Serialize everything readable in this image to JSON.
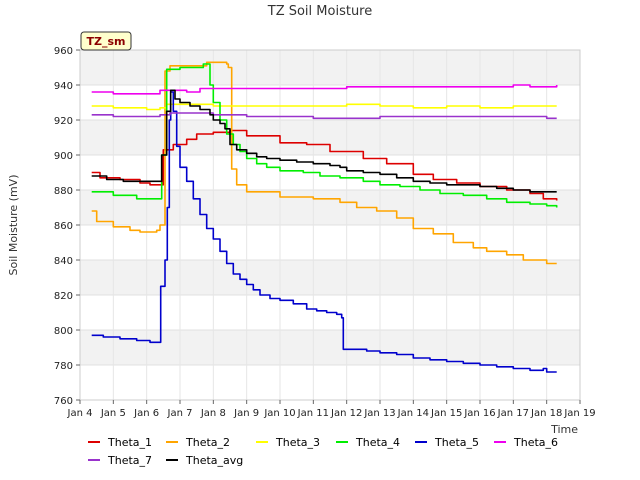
{
  "chart_data": {
    "type": "line",
    "title": "TZ Soil Moisture",
    "xlabel": "Time",
    "ylabel": "Soil Moisture (mV)",
    "tag_label": "TZ_sm",
    "xlim": [
      4,
      19
    ],
    "ylim": [
      760,
      960
    ],
    "yticks": [
      760,
      780,
      800,
      820,
      840,
      860,
      880,
      900,
      920,
      940,
      960
    ],
    "xticks": [
      {
        "value": 4,
        "label": "Jan 4"
      },
      {
        "value": 5,
        "label": "Jan 5"
      },
      {
        "value": 6,
        "label": "Jan 6"
      },
      {
        "value": 7,
        "label": "Jan 7"
      },
      {
        "value": 8,
        "label": "Jan 8"
      },
      {
        "value": 9,
        "label": "Jan 9"
      },
      {
        "value": 10,
        "label": "Jan 10"
      },
      {
        "value": 11,
        "label": "Jan 11"
      },
      {
        "value": 12,
        "label": "Jan 12"
      },
      {
        "value": 13,
        "label": "Jan 13"
      },
      {
        "value": 14,
        "label": "Jan 14"
      },
      {
        "value": 15,
        "label": "Jan 15"
      },
      {
        "value": 16,
        "label": "Jan 16"
      },
      {
        "value": 17,
        "label": "Jan 17"
      },
      {
        "value": 18,
        "label": "Jan 18"
      },
      {
        "value": 19,
        "label": "Jan 19"
      }
    ],
    "grid": true,
    "series": [
      {
        "name": "Theta_1",
        "color": "#dd0000",
        "points": [
          [
            4.35,
            890
          ],
          [
            4.6,
            887
          ],
          [
            5.2,
            886
          ],
          [
            5.8,
            884
          ],
          [
            6.1,
            883
          ],
          [
            6.3,
            883
          ],
          [
            6.5,
            903
          ],
          [
            6.8,
            906
          ],
          [
            7.2,
            909
          ],
          [
            7.5,
            912
          ],
          [
            8.0,
            913
          ],
          [
            8.5,
            914
          ],
          [
            9.0,
            911
          ],
          [
            10.0,
            907
          ],
          [
            10.8,
            906
          ],
          [
            11.5,
            902
          ],
          [
            12.5,
            898
          ],
          [
            13.2,
            895
          ],
          [
            14.0,
            889
          ],
          [
            14.6,
            886
          ],
          [
            15.3,
            884
          ],
          [
            16.0,
            882
          ],
          [
            16.8,
            880
          ],
          [
            17.5,
            878
          ],
          [
            17.9,
            875
          ],
          [
            18.3,
            874
          ]
        ]
      },
      {
        "name": "Theta_2",
        "color": "#ffa500",
        "points": [
          [
            4.35,
            868
          ],
          [
            4.5,
            862
          ],
          [
            5.0,
            859
          ],
          [
            5.5,
            857
          ],
          [
            5.8,
            856
          ],
          [
            6.3,
            857
          ],
          [
            6.4,
            860
          ],
          [
            6.55,
            948
          ],
          [
            6.7,
            951
          ],
          [
            7.5,
            951
          ],
          [
            7.8,
            953
          ],
          [
            8.4,
            952
          ],
          [
            8.45,
            950
          ],
          [
            8.55,
            892
          ],
          [
            8.7,
            883
          ],
          [
            9.0,
            879
          ],
          [
            10.0,
            876
          ],
          [
            11.0,
            875
          ],
          [
            11.8,
            873
          ],
          [
            12.3,
            870
          ],
          [
            12.9,
            868
          ],
          [
            13.5,
            864
          ],
          [
            14.0,
            858
          ],
          [
            14.6,
            855
          ],
          [
            15.2,
            850
          ],
          [
            15.8,
            847
          ],
          [
            16.2,
            845
          ],
          [
            16.8,
            843
          ],
          [
            17.3,
            840
          ],
          [
            18.0,
            838
          ],
          [
            18.3,
            838
          ]
        ]
      },
      {
        "name": "Theta_3",
        "color": "#ffff00",
        "points": [
          [
            4.35,
            928
          ],
          [
            5.0,
            927
          ],
          [
            6.0,
            926
          ],
          [
            6.4,
            927
          ],
          [
            6.6,
            929
          ],
          [
            7.0,
            929
          ],
          [
            8.0,
            928
          ],
          [
            9.0,
            928
          ],
          [
            10.0,
            928
          ],
          [
            11.0,
            928
          ],
          [
            12.0,
            929
          ],
          [
            13.0,
            928
          ],
          [
            14.0,
            927
          ],
          [
            15.0,
            928
          ],
          [
            16.0,
            927
          ],
          [
            17.0,
            928
          ],
          [
            18.3,
            928
          ]
        ]
      },
      {
        "name": "Theta_4",
        "color": "#00ee00",
        "points": [
          [
            4.35,
            879
          ],
          [
            5.0,
            877
          ],
          [
            5.7,
            875
          ],
          [
            6.3,
            875
          ],
          [
            6.45,
            900
          ],
          [
            6.6,
            949
          ],
          [
            7.0,
            950
          ],
          [
            7.5,
            950
          ],
          [
            7.7,
            952
          ],
          [
            7.9,
            940
          ],
          [
            8.0,
            930
          ],
          [
            8.2,
            920
          ],
          [
            8.4,
            912
          ],
          [
            8.6,
            906
          ],
          [
            8.8,
            902
          ],
          [
            9.0,
            898
          ],
          [
            9.3,
            895
          ],
          [
            9.6,
            893
          ],
          [
            10.0,
            891
          ],
          [
            10.7,
            890
          ],
          [
            11.2,
            888
          ],
          [
            11.8,
            887
          ],
          [
            12.5,
            885
          ],
          [
            13.0,
            883
          ],
          [
            13.6,
            882
          ],
          [
            14.2,
            880
          ],
          [
            14.8,
            878
          ],
          [
            15.5,
            877
          ],
          [
            16.2,
            875
          ],
          [
            16.8,
            873
          ],
          [
            17.5,
            872
          ],
          [
            18.0,
            871
          ],
          [
            18.3,
            870
          ]
        ]
      },
      {
        "name": "Theta_5",
        "color": "#0000cc",
        "points": [
          [
            4.35,
            797
          ],
          [
            4.7,
            796
          ],
          [
            5.2,
            795
          ],
          [
            5.7,
            794
          ],
          [
            6.1,
            793
          ],
          [
            6.35,
            793
          ],
          [
            6.42,
            825
          ],
          [
            6.55,
            840
          ],
          [
            6.62,
            870
          ],
          [
            6.68,
            920
          ],
          [
            6.72,
            936
          ],
          [
            6.8,
            925
          ],
          [
            6.9,
            905
          ],
          [
            7.0,
            893
          ],
          [
            7.2,
            885
          ],
          [
            7.4,
            875
          ],
          [
            7.6,
            866
          ],
          [
            7.8,
            858
          ],
          [
            8.0,
            852
          ],
          [
            8.2,
            845
          ],
          [
            8.4,
            838
          ],
          [
            8.6,
            832
          ],
          [
            8.8,
            829
          ],
          [
            9.0,
            826
          ],
          [
            9.2,
            823
          ],
          [
            9.4,
            820
          ],
          [
            9.7,
            818
          ],
          [
            10.0,
            817
          ],
          [
            10.4,
            815
          ],
          [
            10.8,
            812
          ],
          [
            11.1,
            811
          ],
          [
            11.4,
            810
          ],
          [
            11.7,
            809
          ],
          [
            11.85,
            807
          ],
          [
            11.9,
            789
          ],
          [
            12.3,
            789
          ],
          [
            12.6,
            788
          ],
          [
            13.0,
            787
          ],
          [
            13.5,
            786
          ],
          [
            14.0,
            784
          ],
          [
            14.5,
            783
          ],
          [
            15.0,
            782
          ],
          [
            15.5,
            781
          ],
          [
            16.0,
            780
          ],
          [
            16.5,
            779
          ],
          [
            17.0,
            778
          ],
          [
            17.5,
            777
          ],
          [
            17.9,
            778
          ],
          [
            18.0,
            776
          ],
          [
            18.3,
            776
          ]
        ]
      },
      {
        "name": "Theta_6",
        "color": "#ee00ee",
        "points": [
          [
            4.35,
            936
          ],
          [
            5.0,
            935
          ],
          [
            5.5,
            935
          ],
          [
            6.0,
            935
          ],
          [
            6.4,
            937
          ],
          [
            6.7,
            937
          ],
          [
            7.2,
            936
          ],
          [
            7.6,
            938
          ],
          [
            8.0,
            938
          ],
          [
            9.0,
            938
          ],
          [
            10.0,
            938
          ],
          [
            11.0,
            938
          ],
          [
            12.0,
            939
          ],
          [
            13.0,
            939
          ],
          [
            14.0,
            939
          ],
          [
            15.0,
            939
          ],
          [
            16.0,
            939
          ],
          [
            17.0,
            940
          ],
          [
            17.5,
            939
          ],
          [
            18.3,
            940
          ]
        ]
      },
      {
        "name": "Theta_7",
        "color": "#9933cc",
        "points": [
          [
            4.35,
            923
          ],
          [
            5.0,
            922
          ],
          [
            6.0,
            922
          ],
          [
            6.4,
            923
          ],
          [
            6.7,
            924
          ],
          [
            7.2,
            924
          ],
          [
            8.0,
            923
          ],
          [
            9.0,
            922
          ],
          [
            10.0,
            922
          ],
          [
            11.0,
            921
          ],
          [
            12.0,
            921
          ],
          [
            13.0,
            922
          ],
          [
            14.0,
            922
          ],
          [
            15.0,
            922
          ],
          [
            16.0,
            922
          ],
          [
            17.0,
            922
          ],
          [
            18.0,
            921
          ],
          [
            18.3,
            921
          ]
        ]
      },
      {
        "name": "Theta_avg",
        "color": "#000000",
        "points": [
          [
            4.35,
            888
          ],
          [
            4.8,
            886
          ],
          [
            5.3,
            885
          ],
          [
            5.8,
            885
          ],
          [
            6.3,
            885
          ],
          [
            6.45,
            900
          ],
          [
            6.6,
            925
          ],
          [
            6.72,
            937
          ],
          [
            6.85,
            932
          ],
          [
            7.0,
            930
          ],
          [
            7.3,
            928
          ],
          [
            7.6,
            926
          ],
          [
            7.9,
            923
          ],
          [
            8.0,
            920
          ],
          [
            8.2,
            918
          ],
          [
            8.35,
            915
          ],
          [
            8.5,
            906
          ],
          [
            8.7,
            903
          ],
          [
            9.0,
            901
          ],
          [
            9.3,
            899
          ],
          [
            9.6,
            898
          ],
          [
            10.0,
            897
          ],
          [
            10.5,
            896
          ],
          [
            11.0,
            895
          ],
          [
            11.5,
            894
          ],
          [
            11.8,
            893
          ],
          [
            12.0,
            891
          ],
          [
            12.5,
            890
          ],
          [
            13.0,
            889
          ],
          [
            13.5,
            887
          ],
          [
            14.0,
            885
          ],
          [
            14.5,
            884
          ],
          [
            15.0,
            883
          ],
          [
            15.5,
            883
          ],
          [
            16.0,
            882
          ],
          [
            16.5,
            881
          ],
          [
            17.0,
            880
          ],
          [
            17.5,
            879
          ],
          [
            18.0,
            879
          ],
          [
            18.3,
            879
          ]
        ]
      }
    ]
  }
}
